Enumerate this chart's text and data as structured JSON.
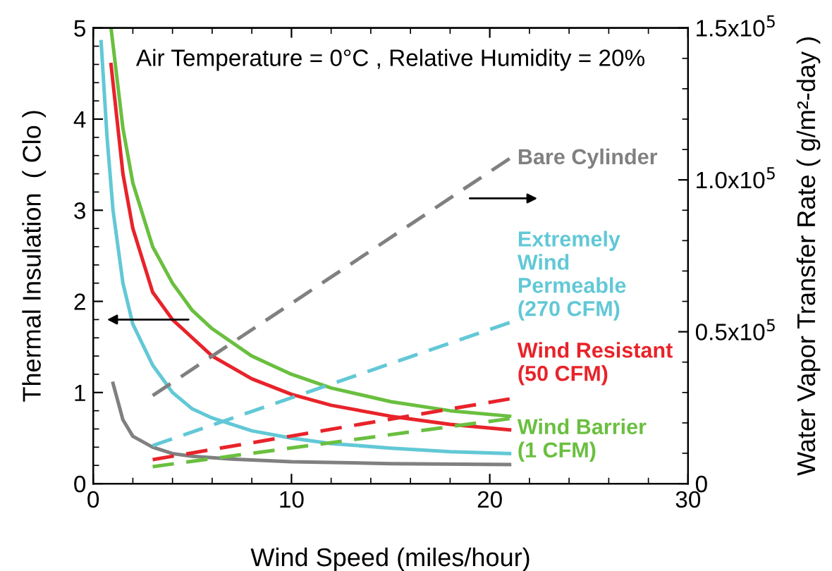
{
  "chart_data": {
    "type": "line",
    "xlabel": "Wind Speed (miles/hour)",
    "ylabel": "Thermal Insulation  ( Clo )",
    "y2label": "Water Vapor Transfer Rate ( g/m²-day )",
    "annotations": [
      "Air Temperature = 0°C , Relative Humidity = 20%"
    ],
    "xlim": [
      0,
      30
    ],
    "xticks": [
      0,
      10,
      20,
      30
    ],
    "ylim": [
      0,
      5
    ],
    "yticks": [
      0,
      1,
      2,
      3,
      4,
      5
    ],
    "y2lim": [
      0,
      150000
    ],
    "y2ticks": [
      {
        "value": 0,
        "label": "0"
      },
      {
        "value": 50000,
        "label": "0.5x10$^{5}$"
      },
      {
        "value": 100000,
        "label": "1.0x10$^{5}$"
      },
      {
        "value": 150000,
        "label": "1.5x10$^{5}$"
      }
    ],
    "grid": false,
    "legend": false,
    "marker": "none",
    "series": [
      {
        "color": "#6abf3f",
        "line_style": "solid",
        "x": [
          0.9,
          1.5,
          2,
          3,
          4,
          5,
          6,
          8,
          10,
          12,
          15,
          18,
          21
        ],
        "values": [
          5.0,
          3.9,
          3.3,
          2.6,
          2.2,
          1.9,
          1.7,
          1.4,
          1.2,
          1.05,
          0.9,
          0.8,
          0.74
        ]
      },
      {
        "color": "#e8232a",
        "line_style": "solid",
        "x": [
          0.9,
          1.5,
          2,
          3,
          4,
          5,
          6,
          8,
          10,
          12,
          15,
          18,
          21
        ],
        "values": [
          4.6,
          3.4,
          2.8,
          2.1,
          1.8,
          1.6,
          1.4,
          1.15,
          0.98,
          0.86,
          0.74,
          0.65,
          0.59
        ]
      },
      {
        "color": "#62c8d6",
        "line_style": "solid",
        "x": [
          0.4,
          0.7,
          1,
          1.5,
          2,
          3,
          4,
          5,
          6,
          8,
          10,
          12,
          15,
          18,
          21
        ],
        "values": [
          4.85,
          3.8,
          3.0,
          2.2,
          1.75,
          1.3,
          1.0,
          0.82,
          0.72,
          0.58,
          0.5,
          0.44,
          0.39,
          0.35,
          0.33
        ]
      },
      {
        "color": "#808080",
        "line_style": "solid",
        "x": [
          1,
          1.5,
          2,
          3,
          4,
          5,
          7,
          10,
          15,
          21
        ],
        "values": [
          1.1,
          0.7,
          0.52,
          0.4,
          0.33,
          0.3,
          0.27,
          0.24,
          0.22,
          0.21
        ]
      },
      {
        "name": "Bare Cylinder",
        "color": "#808080",
        "line_style": "dashed",
        "axis": "y2",
        "x": [
          3,
          21
        ],
        "values": [
          29000,
          107000
        ]
      },
      {
        "name": "Extremely\nWind\nPermeable\n(270 CFM)",
        "color": "#62c8d6",
        "line_style": "dashed",
        "axis": "y2",
        "x": [
          3,
          21
        ],
        "values": [
          12500,
          53000
        ]
      },
      {
        "name": "Wind Resistant\n(50 CFM)",
        "color": "#e8232a",
        "line_style": "dashed",
        "axis": "y2",
        "x": [
          3,
          21
        ],
        "values": [
          7900,
          27900
        ]
      },
      {
        "name": "Wind Barrier\n(1 CFM)",
        "color": "#6abf3f",
        "line_style": "dashed",
        "axis": "y2",
        "x": [
          3,
          21
        ],
        "values": [
          5600,
          21400
        ]
      }
    ]
  }
}
